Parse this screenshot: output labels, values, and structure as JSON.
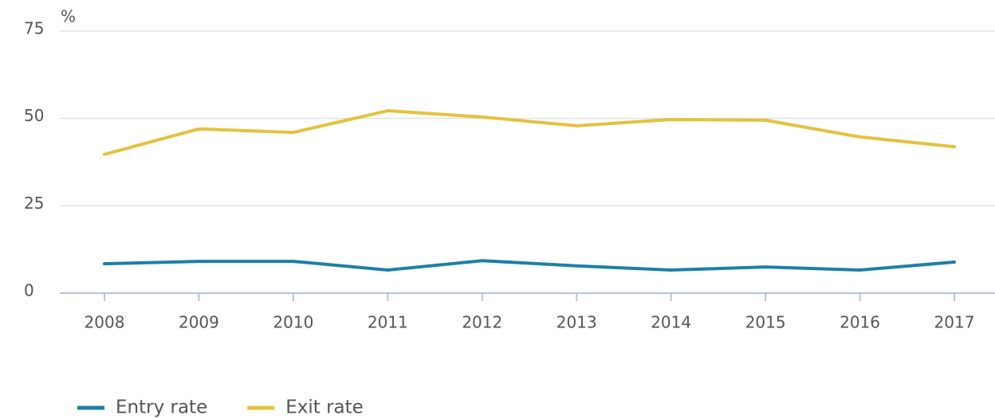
{
  "chart_data": {
    "type": "line",
    "y_label": "%",
    "categories": [
      "2008",
      "2009",
      "2010",
      "2011",
      "2012",
      "2013",
      "2014",
      "2015",
      "2016",
      "2017"
    ],
    "series": [
      {
        "name": "Entry rate",
        "color": "#1f7fa6",
        "values": [
          8.4,
          9.1,
          9.1,
          6.6,
          9.3,
          7.8,
          6.6,
          7.5,
          6.6,
          8.9
        ]
      },
      {
        "name": "Exit rate",
        "color": "#e4c23d",
        "values": [
          39.7,
          47.0,
          46.0,
          52.2,
          50.4,
          47.9,
          49.7,
          49.5,
          44.7,
          41.9
        ]
      }
    ],
    "ylim": [
      0,
      75
    ],
    "yticks": [
      0,
      25,
      50,
      75
    ],
    "grid": true,
    "legend": "bottom-left"
  }
}
